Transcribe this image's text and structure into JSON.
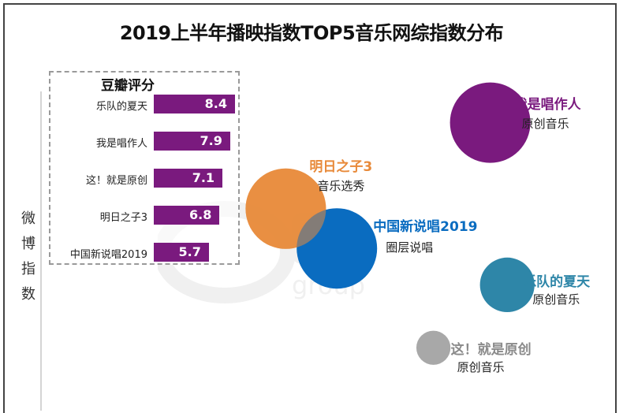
{
  "title": "2019上半年播映指数TOP5音乐网综指数分布",
  "y_axis_label": [
    "微",
    "博",
    "指",
    "数"
  ],
  "inset": {
    "title": "豆瓣评分"
  },
  "chart_data": [
    {
      "type": "bar",
      "orientation": "horizontal",
      "title": "豆瓣评分",
      "categories": [
        "乐队的夏天",
        "我是唱作人",
        "这！就是原创",
        "明日之子3",
        "中国新说唱2019"
      ],
      "values": [
        8.4,
        7.9,
        7.1,
        6.8,
        5.7
      ],
      "data_labels": [
        "8.4",
        "7.9",
        "7.1",
        "6.8",
        "5.7"
      ],
      "color": "#7a1a7e"
    },
    {
      "type": "scatter",
      "subtype": "bubble",
      "title": "2019上半年播映指数TOP5音乐网综指数分布",
      "xlabel": "",
      "ylabel": "微博指数",
      "grid": false,
      "axis_ticks": false,
      "note": "No numeric ticks shown; positions are relative (x: 0-100, y: 0-100, size: relative)",
      "points": [
        {
          "name": "我是唱作人",
          "category": "原创音乐",
          "x": 78,
          "y": 82,
          "size": 100,
          "color": "#7a1a7e"
        },
        {
          "name": "明日之子3",
          "category": "音乐选秀",
          "x": 42,
          "y": 56,
          "size": 100,
          "color": "#e88a3a"
        },
        {
          "name": "中国新说唱2019",
          "category": "圈层说唱",
          "x": 51,
          "y": 44,
          "size": 100,
          "color": "#0a6cc0"
        },
        {
          "name": "乐队的夏天",
          "category": "原创音乐",
          "x": 81,
          "y": 33,
          "size": 46,
          "color": "#2e86a8"
        },
        {
          "name": "这！就是原创",
          "category": "原创音乐",
          "x": 68,
          "y": 14,
          "size": 18,
          "color": "#a8a8a8"
        }
      ]
    }
  ]
}
